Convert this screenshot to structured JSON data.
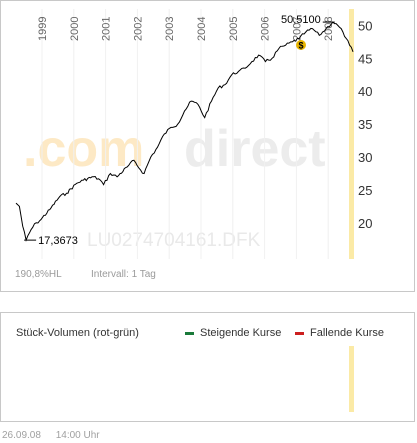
{
  "chart_data": {
    "type": "line",
    "ylim": [
      14.5,
      52.5
    ],
    "yticks": [
      20,
      25,
      30,
      35,
      40,
      45,
      50
    ],
    "years": [
      "1999",
      "2000",
      "2001",
      "2002",
      "2003",
      "2004",
      "2005",
      "2006",
      "2007",
      "2008"
    ],
    "series": [
      {
        "x": [
          0,
          0.01,
          0.02,
          0.03,
          0.045,
          0.06,
          0.07,
          0.1,
          0.13,
          0.15,
          0.18,
          0.2,
          0.23,
          0.25,
          0.26,
          0.28,
          0.3,
          0.33,
          0.35,
          0.37,
          0.38,
          0.4,
          0.42,
          0.44,
          0.46,
          0.48,
          0.5,
          0.52,
          0.54,
          0.56,
          0.58,
          0.6,
          0.62,
          0.64,
          0.66,
          0.68,
          0.7,
          0.72,
          0.74,
          0.76,
          0.78,
          0.8,
          0.82,
          0.84,
          0.86,
          0.88,
          0.9,
          0.92,
          0.94,
          0.955,
          0.97,
          0.98,
          0.99,
          1.0
        ],
        "values": [
          23.0,
          22.5,
          19.5,
          17.37,
          19.0,
          20.0,
          20.3,
          22.0,
          24.0,
          24.5,
          26.0,
          26.5,
          27.0,
          26.5,
          25.8,
          27.5,
          27.0,
          28.5,
          29.5,
          28.0,
          27.5,
          30.0,
          31.5,
          33.5,
          34.5,
          35.0,
          37.0,
          38.5,
          38.0,
          36.0,
          38.5,
          40.5,
          41.0,
          42.5,
          43.0,
          43.5,
          44.5,
          45.5,
          44.5,
          45.0,
          46.5,
          47.0,
          47.5,
          48.0,
          49.0,
          49.5,
          48.5,
          49.5,
          50.51,
          50.0,
          49.0,
          48.0,
          47.0,
          46.0
        ]
      }
    ],
    "annotations": {
      "min_label": "17,3673",
      "max_label": "50,5100",
      "marker_glyph": "$"
    }
  },
  "watermark": {
    "brand_left": ".com",
    "brand_right": "direct",
    "isin": "LU0274704161.DFK"
  },
  "footer": {
    "performance": "190,8%",
    "hl": "HL",
    "interval": "Intervall: 1 Tag"
  },
  "volume": {
    "title": "Stück-Volumen (rot-grün)",
    "legend_rising": "Steigende Kurse",
    "legend_falling": "Fallende Kurse"
  },
  "date_footer": {
    "date": "26.09.08",
    "time": "14:00 Uhr"
  },
  "colors": {
    "line": "#000000",
    "highlight_bar": "#fbeaa6",
    "watermark_orange": "#fde9c5",
    "watermark_gray": "#ececec",
    "rising": "#1a7a3a",
    "falling": "#cc1f1f",
    "marker": "#e8b400"
  }
}
